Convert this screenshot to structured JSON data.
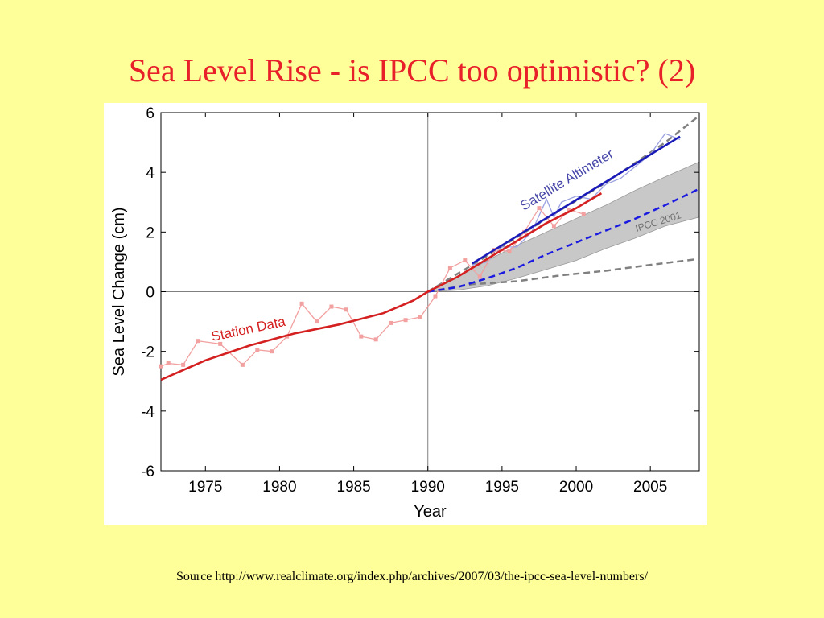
{
  "slide": {
    "title": "Sea Level Rise - is IPCC too optimistic? (2)",
    "source": "Source http://www.realclimate.org/index.php/archives/2007/03/the-ipcc-sea-level-numbers/"
  },
  "colors": {
    "background": "#FFFF99",
    "title": "#E8202A",
    "station": "#D42020",
    "station_raw": "#F2A0A0",
    "satellite": "#1A1AB8",
    "satellite_raw": "#9AA0E0",
    "ipcc": "#1A1AE0",
    "ipcc_band": "#C8C8C8",
    "scenario": "#808080"
  },
  "chart_data": {
    "type": "line",
    "title": "",
    "xlabel": "Year",
    "ylabel": "Sea Level Change (cm)",
    "xlim": [
      1972,
      2008.3
    ],
    "ylim": [
      -6,
      6
    ],
    "xticks": [
      1975,
      1980,
      1985,
      1990,
      1995,
      2000,
      2005
    ],
    "yticks": [
      -6,
      -4,
      -2,
      0,
      2,
      4,
      6
    ],
    "grid": false,
    "annotations": [
      "Station Data",
      "Satellite Altimeter",
      "IPCC 2001"
    ],
    "series": [
      {
        "name": "Station Data",
        "style": "smoothed",
        "x": [
          1972,
          1975,
          1978,
          1981,
          1984,
          1987,
          1989,
          1990,
          1992,
          1994,
          1996,
          1998,
          2000,
          2001.7
        ],
        "y": [
          -2.95,
          -2.3,
          -1.8,
          -1.4,
          -1.1,
          -0.72,
          -0.3,
          0.0,
          0.5,
          1.1,
          1.7,
          2.3,
          2.8,
          3.3
        ]
      },
      {
        "name": "Station Data",
        "style": "annual",
        "x": [
          1972,
          1972.5,
          1973.5,
          1974.5,
          1976,
          1977.5,
          1978.5,
          1979.5,
          1980.5,
          1981.5,
          1982.5,
          1983.5,
          1984.5,
          1985.5,
          1986.5,
          1987.5,
          1988.5,
          1989.5,
          1990.5,
          1991.5,
          1992.5,
          1993.5,
          1994.5,
          1995.5,
          1996.5,
          1997.5,
          1998.5,
          1999.5,
          2000.5
        ],
        "y": [
          -2.5,
          -2.4,
          -2.45,
          -1.65,
          -1.75,
          -2.45,
          -1.95,
          -2.0,
          -1.5,
          -0.4,
          -1.0,
          -0.5,
          -0.6,
          -1.5,
          -1.6,
          -1.05,
          -0.95,
          -0.85,
          -0.15,
          0.8,
          1.05,
          0.5,
          1.4,
          1.35,
          2.0,
          2.8,
          2.2,
          2.75,
          2.6
        ]
      },
      {
        "name": "Satellite Altimeter",
        "style": "trend",
        "x": [
          1993,
          2007
        ],
        "y": [
          0.95,
          5.2
        ]
      },
      {
        "name": "Satellite Altimeter",
        "style": "raw",
        "x": [
          1993,
          1994,
          1995,
          1996,
          1997,
          1998,
          1998.5,
          1999,
          2000,
          2001,
          2002,
          2003,
          2004,
          2005,
          2006,
          2007
        ],
        "y": [
          0.9,
          1.0,
          1.5,
          1.5,
          2.0,
          3.1,
          2.5,
          3.0,
          3.2,
          3.1,
          3.6,
          3.8,
          4.2,
          4.6,
          5.3,
          5.1
        ]
      },
      {
        "name": "IPCC 2001",
        "style": "central",
        "x": [
          1990,
          1992,
          1994,
          1996,
          1998,
          2000,
          2002,
          2004,
          2006,
          2008.3
        ],
        "y": [
          0.0,
          0.15,
          0.45,
          0.8,
          1.25,
          1.65,
          2.05,
          2.45,
          2.9,
          3.45
        ]
      },
      {
        "name": "IPCC 2001",
        "style": "upper",
        "x": [
          1990,
          1992,
          1994,
          1996,
          1998,
          2000,
          2002,
          2004,
          2006,
          2008.3
        ],
        "y": [
          0.0,
          0.5,
          1.05,
          1.55,
          2.0,
          2.45,
          2.9,
          3.4,
          3.85,
          4.35
        ]
      },
      {
        "name": "IPCC 2001",
        "style": "lower",
        "x": [
          1990,
          1992,
          1994,
          1996,
          1998,
          2000,
          2002,
          2004,
          2006,
          2008.3
        ],
        "y": [
          0.0,
          0.05,
          0.2,
          0.45,
          0.75,
          1.05,
          1.45,
          1.8,
          2.2,
          2.5
        ]
      },
      {
        "name": "IPCC 2001",
        "style": "max",
        "x": [
          1990,
          1994,
          1998,
          2002,
          2006,
          2008.3
        ],
        "y": [
          0.0,
          1.2,
          2.45,
          3.65,
          5.0,
          5.9
        ]
      },
      {
        "name": "IPCC 2001",
        "style": "min",
        "x": [
          1990,
          1993,
          1996,
          1999,
          2002,
          2005,
          2008.3
        ],
        "y": [
          0.0,
          0.25,
          0.35,
          0.55,
          0.7,
          0.9,
          1.1
        ]
      }
    ]
  }
}
